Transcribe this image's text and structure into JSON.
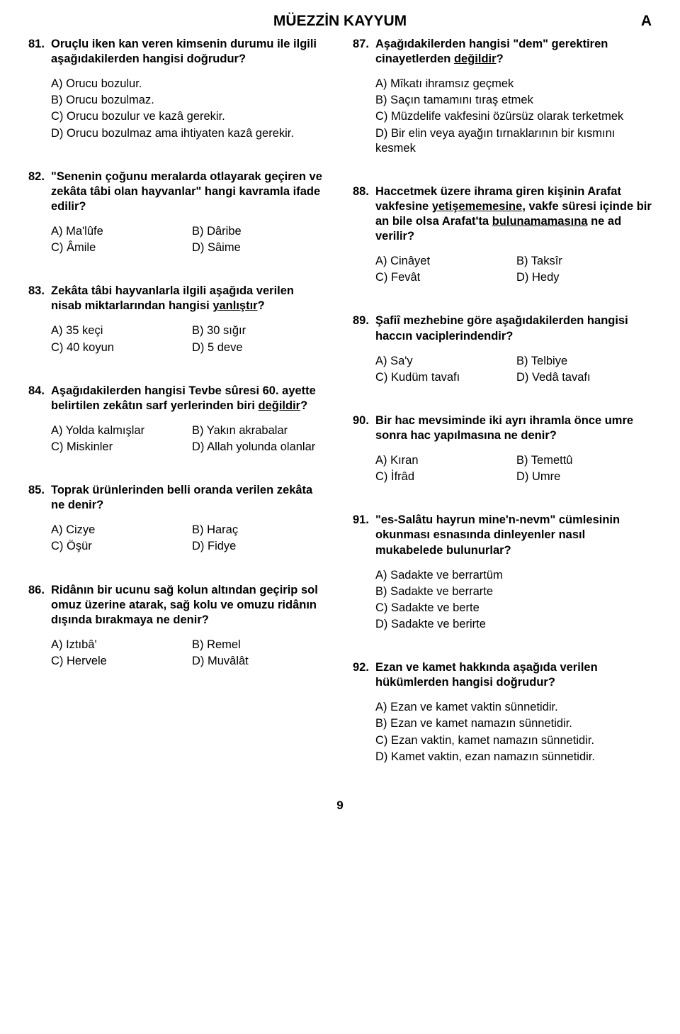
{
  "header": {
    "title": "MÜEZZİN KAYYUM",
    "marker": "A"
  },
  "pagenum": "9",
  "left": [
    {
      "num": "81.",
      "text_html": "Oruçlu iken kan veren kimsenin durumu ile ilgili aşağıdakilerden hangisi doğrudur?",
      "layout": "list",
      "options": [
        "A) Orucu bozulur.",
        "B) Orucu bozulmaz.",
        "C) Orucu bozulur ve kazâ gerekir.",
        "D) Orucu bozulmaz ama ihtiyaten kazâ gerekir."
      ]
    },
    {
      "num": "82.",
      "text_html": "\"Senenin çoğunu meralarda otlayarak geçiren ve zekâta tâbi olan hayvanlar\" hangi kavramla ifade edilir?",
      "layout": "grid",
      "options": [
        "A) Ma'lûfe",
        "B) Dâribe",
        "C) Âmile",
        "D) Sâime"
      ]
    },
    {
      "num": "83.",
      "text_html": "Zekâta tâbi hayvanlarla ilgili aşağıda verilen nisab miktarlarından hangisi <span class='underline'>yanlıştır</span>?",
      "layout": "grid",
      "options": [
        "A) 35 keçi",
        "B) 30 sığır",
        "C) 40 koyun",
        "D) 5 deve"
      ]
    },
    {
      "num": "84.",
      "text_html": "Aşağıdakilerden hangisi Tevbe sûresi 60. ayette belirtilen zekâtın sarf yerlerinden biri <span class='underline'>değildir</span>?",
      "layout": "grid",
      "options": [
        "A) Yolda kalmışlar",
        "B) Yakın akrabalar",
        "C) Miskinler",
        "D) Allah yolunda olanlar"
      ]
    },
    {
      "num": "85.",
      "text_html": "Toprak ürünlerinden belli oranda verilen zekâta ne denir?",
      "layout": "grid",
      "options": [
        "A) Cizye",
        "B) Haraç",
        "C) Öşür",
        "D) Fidye"
      ]
    },
    {
      "num": "86.",
      "text_html": "Ridânın bir ucunu sağ kolun altından geçirip sol omuz üzerine atarak, sağ kolu ve omuzu ridânın dışında bırakmaya ne denir?",
      "layout": "grid",
      "options": [
        "A) Iztıbâ'",
        "B) Remel",
        "C) Hervele",
        "D) Muvâlât"
      ]
    }
  ],
  "right": [
    {
      "num": "87.",
      "text_html": "Aşağıdakilerden hangisi \"dem\" gerektiren cinayetlerden <span class='underline'>değildir</span>?",
      "layout": "list",
      "options": [
        "A) Mîkatı ihramsız geçmek",
        "B) Saçın tamamını tıraş etmek",
        "C) Müzdelife vakfesini özürsüz olarak terketmek",
        "D) Bir elin veya ayağın tırnaklarının bir kısmını kesmek"
      ]
    },
    {
      "num": "88.",
      "text_html": "Haccetmek üzere ihrama giren kişinin Arafat vakfesine <span class='underline'>yetişememesine</span>, vakfe süresi içinde bir an bile olsa Arafat'ta <span class='underline'>bulunamamasına</span> ne ad verilir?",
      "layout": "grid",
      "options": [
        "A) Cinâyet",
        "B) Taksîr",
        "C) Fevât",
        "D) Hedy"
      ]
    },
    {
      "num": "89.",
      "text_html": "Şafiî mezhebine göre aşağıdakilerden hangisi haccın vaciplerindendir?",
      "layout": "grid",
      "options": [
        "A) Sa'y",
        "B) Telbiye",
        "C) Kudüm tavafı",
        "D) Vedâ tavafı"
      ]
    },
    {
      "num": "90.",
      "text_html": "Bir hac mevsiminde iki ayrı ihramla önce umre sonra hac yapılmasına ne denir?",
      "layout": "grid",
      "options": [
        "A) Kıran",
        "B) Temettû",
        "C) İfrâd",
        "D) Umre"
      ]
    },
    {
      "num": "91.",
      "text_html": "\"es-Salâtu hayrun mine'n-nevm\" cümlesinin okunması esnasında dinleyenler nasıl mukabelede bulunurlar?",
      "layout": "list",
      "options": [
        "A) Sadakte ve berrartüm",
        "B) Sadakte ve berrarte",
        "C) Sadakte ve berte",
        "D) Sadakte ve berirte"
      ]
    },
    {
      "num": "92.",
      "text_html": "Ezan ve kamet hakkında aşağıda verilen hükümlerden hangisi doğrudur?",
      "layout": "list",
      "options": [
        "A) Ezan ve kamet vaktin sünnetidir.",
        "B) Ezan ve kamet namazın sünnetidir.",
        "C) Ezan vaktin, kamet namazın sünnetidir.",
        "D) Kamet vaktin, ezan namazın sünnetidir."
      ]
    }
  ]
}
